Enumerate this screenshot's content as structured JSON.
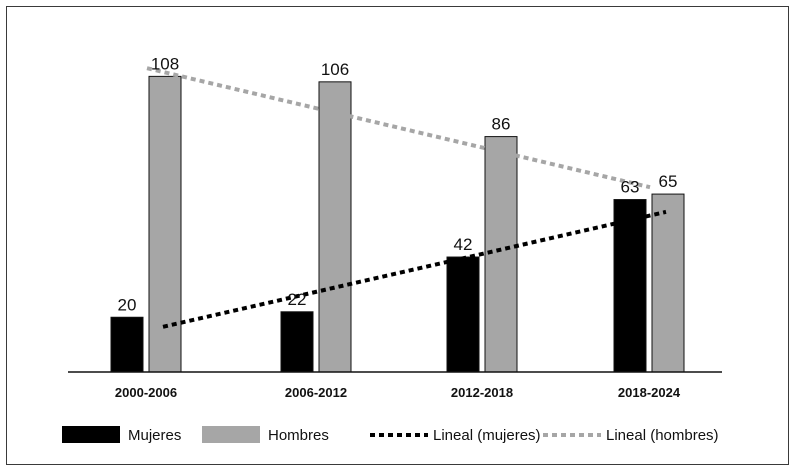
{
  "chart_data": {
    "type": "bar",
    "categories": [
      "2000-2006",
      "2006-2012",
      "2012-2018",
      "2018-2024"
    ],
    "series": [
      {
        "name": "Mujeres",
        "values": [
          20,
          22,
          42,
          63
        ],
        "color": "#000000"
      },
      {
        "name": "Hombres",
        "values": [
          108,
          106,
          86,
          65
        ],
        "color": "#a6a6a6"
      }
    ],
    "trendlines": [
      {
        "name": "Lineal (mujeres)",
        "series": "Mujeres",
        "start": 16.5,
        "end": 58.5,
        "color": "#000000"
      },
      {
        "name": "Lineal (hombres)",
        "series": "Hombres",
        "start": 111,
        "end": 67.5,
        "color": "#a6a6a6"
      }
    ],
    "ylim": [
      0,
      118
    ],
    "grid": false,
    "legend_position": "bottom",
    "title": "",
    "xlabel": "",
    "ylabel": ""
  }
}
